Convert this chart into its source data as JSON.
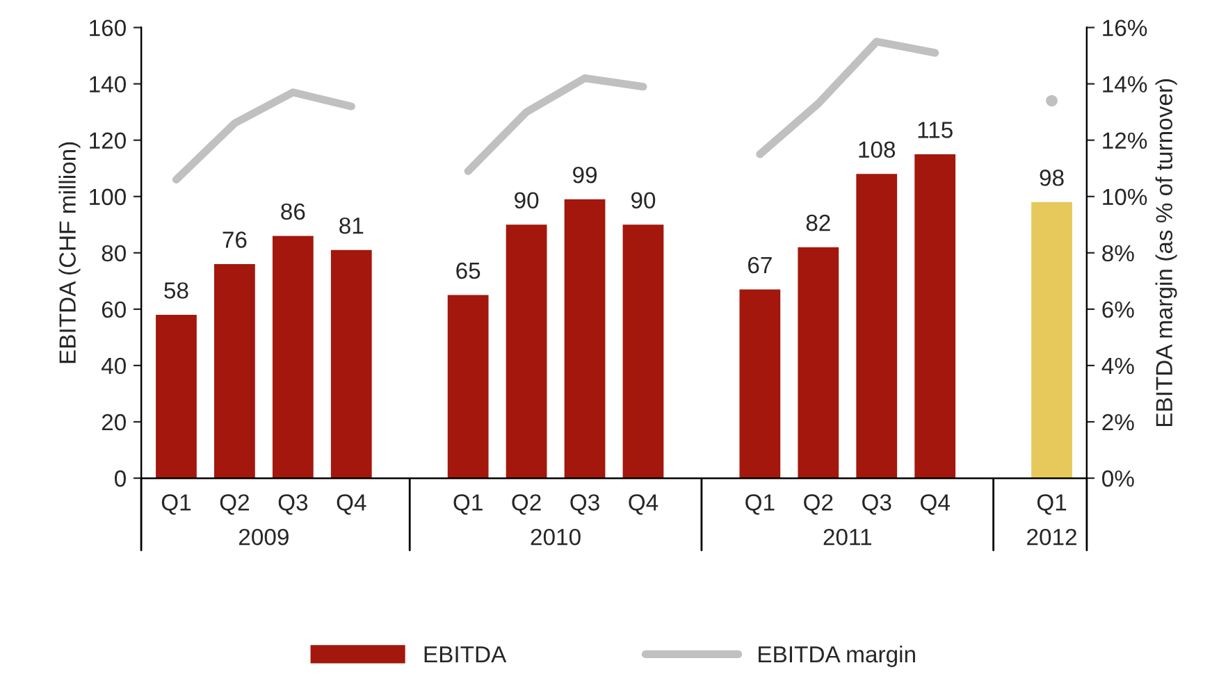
{
  "chart_data": {
    "type": "bar",
    "ylabel": "EBITDA (CHF million)",
    "y2label": "EBITDA margin (as % of turnover)",
    "categories": [
      "Q1",
      "Q2",
      "Q3",
      "Q4",
      null,
      "Q1",
      "Q2",
      "Q3",
      "Q4",
      null,
      "Q1",
      "Q2",
      "Q3",
      "Q4",
      null,
      "Q1"
    ],
    "annotations": [
      "2009",
      "2010",
      "2011",
      "2012"
    ],
    "series": [
      {
        "name": "EBITDA",
        "color": "#a3170c",
        "colors": [
          "#a3170c",
          "#a3170c",
          "#a3170c",
          "#a3170c",
          null,
          "#a3170c",
          "#a3170c",
          "#a3170c",
          "#a3170c",
          null,
          "#a3170c",
          "#a3170c",
          "#a3170c",
          "#a3170c",
          null,
          "#e6c95a"
        ],
        "values": [
          58,
          76,
          86,
          81,
          null,
          65,
          90,
          99,
          90,
          null,
          67,
          82,
          108,
          115,
          null,
          98
        ],
        "value_labels": [
          "58",
          "76",
          "86",
          "81",
          null,
          "65",
          "90",
          "99",
          "90",
          null,
          "67",
          "82",
          "108",
          "115",
          null,
          "98"
        ]
      },
      {
        "name": "EBITDA margin",
        "type": "line",
        "axis": "y2",
        "color": "#c0c0c0",
        "values": [
          10.6,
          12.6,
          13.7,
          13.2,
          null,
          10.9,
          13.0,
          14.2,
          13.9,
          null,
          11.5,
          13.3,
          15.5,
          15.1,
          null,
          13.4
        ]
      }
    ],
    "ylim": [
      0,
      160
    ],
    "yticks": [
      0,
      20,
      40,
      60,
      80,
      100,
      120,
      140,
      160
    ],
    "y2lim": [
      0,
      16
    ],
    "y2ticks": [
      {
        "value": 0,
        "label": "0%"
      },
      {
        "value": 2,
        "label": "2%"
      },
      {
        "value": 4,
        "label": "4%"
      },
      {
        "value": 6,
        "label": "6%"
      },
      {
        "value": 8,
        "label": "8%"
      },
      {
        "value": 10,
        "label": "10%"
      },
      {
        "value": 12,
        "label": "12%"
      },
      {
        "value": 14,
        "label": "14%"
      },
      {
        "value": 16,
        "label": "16%"
      }
    ],
    "grid": false,
    "legend": "bottom"
  }
}
